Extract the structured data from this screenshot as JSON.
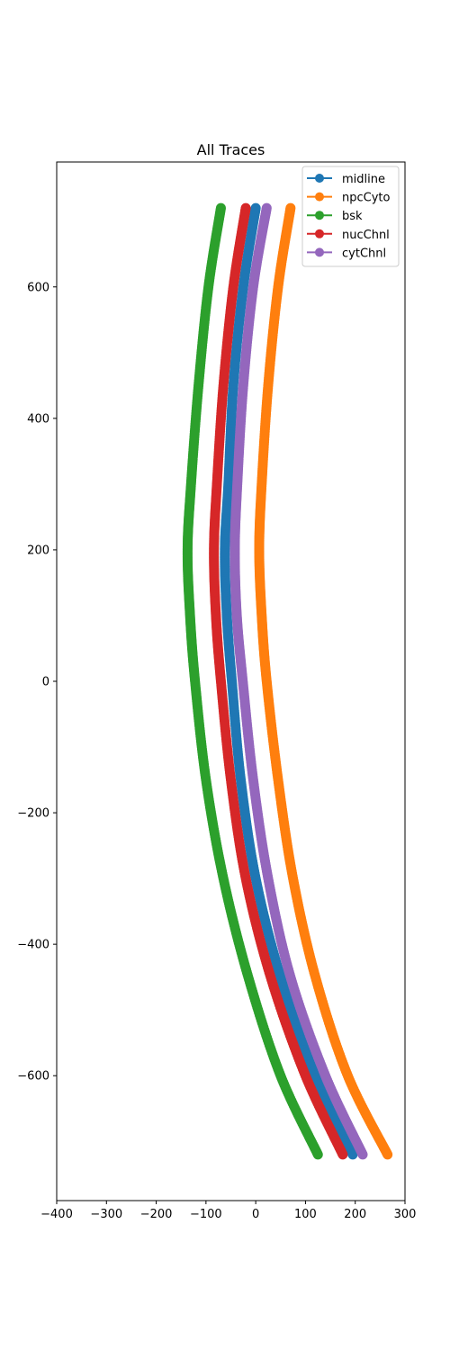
{
  "chart_data": {
    "type": "line",
    "title": "All Traces",
    "xlabel": "",
    "ylabel": "",
    "xlim": [
      -400,
      300
    ],
    "ylim": [
      -790,
      790
    ],
    "x_ticks": [
      -400,
      -300,
      -200,
      -100,
      0,
      100,
      200,
      300
    ],
    "y_ticks": [
      -600,
      -400,
      -200,
      0,
      200,
      400,
      600
    ],
    "x_tick_labels": [
      "−400",
      "−300",
      "−200",
      "−100",
      "0",
      "100",
      "200",
      "300"
    ],
    "y_tick_labels": [
      "−600",
      "−400",
      "−200",
      "0",
      "200",
      "400",
      "600"
    ],
    "grid": false,
    "legend_position": "top-right",
    "series": [
      {
        "name": "midline",
        "color": "#1f77b4",
        "points": [
          [
            0,
            720
          ],
          [
            -25,
            600
          ],
          [
            -45,
            450
          ],
          [
            -55,
            300
          ],
          [
            -62,
            200
          ],
          [
            -58,
            100
          ],
          [
            -48,
            0
          ],
          [
            -30,
            -150
          ],
          [
            0,
            -300
          ],
          [
            50,
            -450
          ],
          [
            120,
            -600
          ],
          [
            195,
            -720
          ]
        ]
      },
      {
        "name": "npcCyto",
        "color": "#ff7f0e",
        "points": [
          [
            70,
            720
          ],
          [
            45,
            600
          ],
          [
            25,
            450
          ],
          [
            12,
            300
          ],
          [
            7,
            200
          ],
          [
            12,
            100
          ],
          [
            22,
            0
          ],
          [
            45,
            -150
          ],
          [
            75,
            -300
          ],
          [
            120,
            -450
          ],
          [
            185,
            -600
          ],
          [
            265,
            -720
          ]
        ]
      },
      {
        "name": "bsk",
        "color": "#2ca02c",
        "points": [
          [
            -70,
            720
          ],
          [
            -95,
            600
          ],
          [
            -115,
            450
          ],
          [
            -130,
            300
          ],
          [
            -137,
            200
          ],
          [
            -132,
            100
          ],
          [
            -122,
            0
          ],
          [
            -100,
            -150
          ],
          [
            -65,
            -300
          ],
          [
            -15,
            -450
          ],
          [
            50,
            -600
          ],
          [
            125,
            -720
          ]
        ]
      },
      {
        "name": "nucChnl",
        "color": "#d62728",
        "points": [
          [
            -20,
            720
          ],
          [
            -45,
            600
          ],
          [
            -65,
            450
          ],
          [
            -78,
            300
          ],
          [
            -84,
            200
          ],
          [
            -80,
            100
          ],
          [
            -70,
            0
          ],
          [
            -50,
            -150
          ],
          [
            -20,
            -300
          ],
          [
            30,
            -450
          ],
          [
            100,
            -600
          ],
          [
            175,
            -720
          ]
        ]
      },
      {
        "name": "cytChnl",
        "color": "#9467bd",
        "points": [
          [
            22,
            720
          ],
          [
            -5,
            600
          ],
          [
            -25,
            450
          ],
          [
            -37,
            300
          ],
          [
            -42,
            200
          ],
          [
            -38,
            100
          ],
          [
            -26,
            0
          ],
          [
            -5,
            -150
          ],
          [
            25,
            -300
          ],
          [
            70,
            -450
          ],
          [
            140,
            -600
          ],
          [
            215,
            -720
          ]
        ]
      }
    ]
  }
}
